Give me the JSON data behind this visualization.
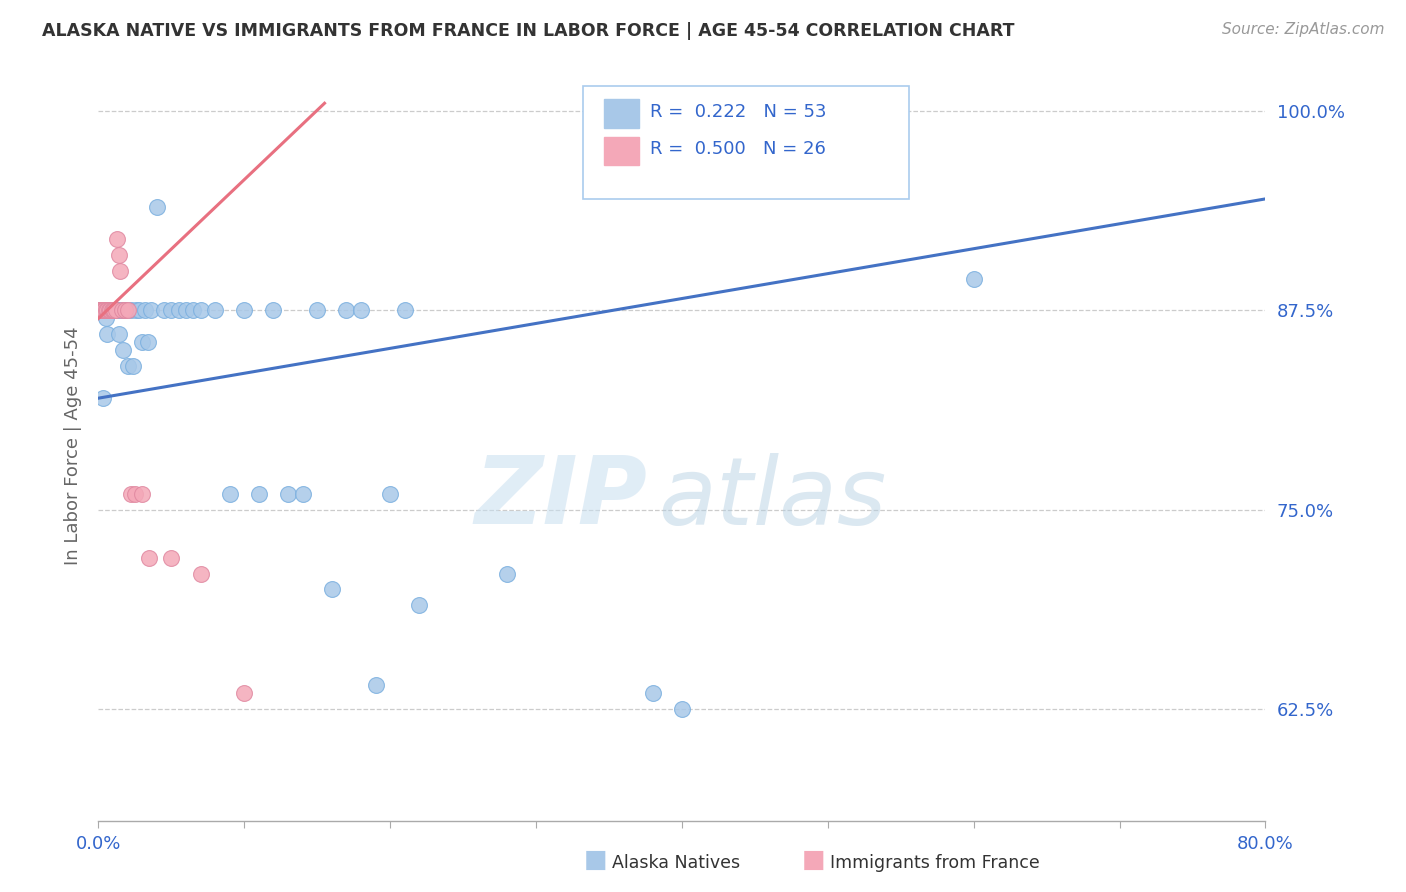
{
  "title": "ALASKA NATIVE VS IMMIGRANTS FROM FRANCE IN LABOR FORCE | AGE 45-54 CORRELATION CHART",
  "source": "Source: ZipAtlas.com",
  "ylabel": "In Labor Force | Age 45-54",
  "x_min": 0.0,
  "x_max": 0.8,
  "y_min": 0.555,
  "y_max": 1.025,
  "y_ticks": [
    0.625,
    0.75,
    0.875,
    1.0
  ],
  "y_tick_labels": [
    "62.5%",
    "75.0%",
    "87.5%",
    "100.0%"
  ],
  "x_ticks": [
    0.0,
    0.1,
    0.2,
    0.3,
    0.4,
    0.5,
    0.6,
    0.7,
    0.8
  ],
  "x_tick_labels": [
    "0.0%",
    "",
    "",
    "",
    "",
    "",
    "",
    "",
    "80.0%"
  ],
  "legend1_R": "0.222",
  "legend1_N": "53",
  "legend2_R": "0.500",
  "legend2_N": "26",
  "blue_scatter_color": "#a8c8e8",
  "pink_scatter_color": "#f4a8b8",
  "line_blue": "#4472c4",
  "line_pink": "#e87080",
  "watermark_zip": "ZIP",
  "watermark_atlas": "atlas",
  "alaska_x": [
    0.0,
    0.003,
    0.004,
    0.005,
    0.006,
    0.006,
    0.007,
    0.008,
    0.009,
    0.01,
    0.011,
    0.012,
    0.013,
    0.014,
    0.015,
    0.016,
    0.017,
    0.018,
    0.02,
    0.022,
    0.024,
    0.026,
    0.028,
    0.03,
    0.032,
    0.034,
    0.036,
    0.04,
    0.045,
    0.05,
    0.055,
    0.06,
    0.065,
    0.07,
    0.08,
    0.09,
    0.1,
    0.11,
    0.12,
    0.13,
    0.14,
    0.15,
    0.16,
    0.17,
    0.18,
    0.19,
    0.2,
    0.21,
    0.22,
    0.28,
    0.38,
    0.4,
    0.6
  ],
  "alaska_y": [
    0.875,
    0.82,
    0.875,
    0.87,
    0.875,
    0.86,
    0.875,
    0.875,
    0.875,
    0.875,
    0.875,
    0.875,
    0.875,
    0.86,
    0.875,
    0.875,
    0.85,
    0.875,
    0.84,
    0.875,
    0.84,
    0.875,
    0.875,
    0.855,
    0.875,
    0.855,
    0.875,
    0.94,
    0.875,
    0.875,
    0.875,
    0.875,
    0.875,
    0.875,
    0.875,
    0.76,
    0.875,
    0.76,
    0.875,
    0.76,
    0.76,
    0.875,
    0.7,
    0.875,
    0.875,
    0.64,
    0.76,
    0.875,
    0.69,
    0.71,
    0.635,
    0.625,
    0.895
  ],
  "france_x": [
    0.0,
    0.001,
    0.002,
    0.003,
    0.004,
    0.005,
    0.006,
    0.007,
    0.008,
    0.009,
    0.01,
    0.011,
    0.012,
    0.013,
    0.014,
    0.015,
    0.016,
    0.018,
    0.02,
    0.022,
    0.025,
    0.03,
    0.035,
    0.05,
    0.07,
    0.1
  ],
  "france_y": [
    0.875,
    0.875,
    0.875,
    0.875,
    0.875,
    0.875,
    0.875,
    0.875,
    0.875,
    0.875,
    0.875,
    0.875,
    0.875,
    0.92,
    0.91,
    0.9,
    0.875,
    0.875,
    0.875,
    0.76,
    0.76,
    0.76,
    0.72,
    0.72,
    0.71,
    0.635
  ],
  "blue_line_x0": 0.0,
  "blue_line_x1": 0.8,
  "blue_line_y0": 0.82,
  "blue_line_y1": 0.945,
  "pink_line_x0": 0.0,
  "pink_line_x1": 0.155,
  "pink_line_y0": 0.87,
  "pink_line_y1": 1.005
}
